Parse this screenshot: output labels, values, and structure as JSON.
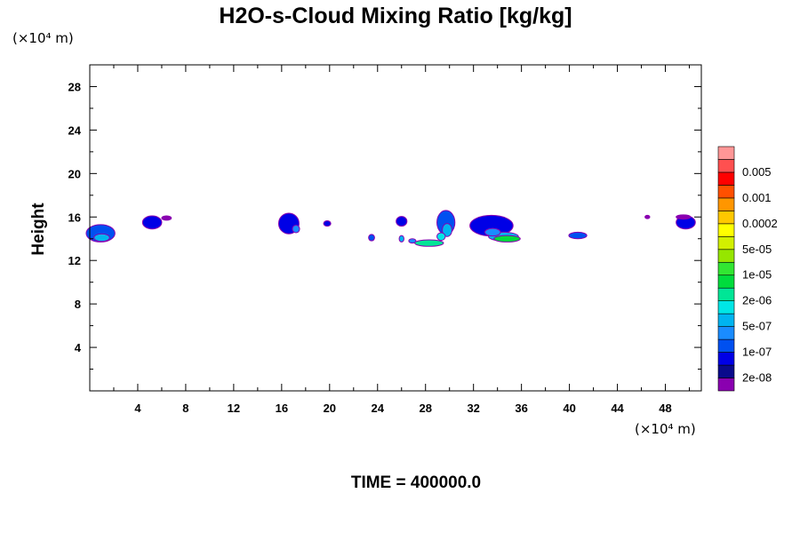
{
  "chart_data": {
    "type": "heatmap",
    "title": "H2O-s-Cloud Mixing Ratio [kg/kg]",
    "xlabel": "",
    "ylabel": "Height",
    "x_unit": "(×10⁴ m)",
    "y_unit": "(×10⁴ m)",
    "xlim": [
      0,
      51
    ],
    "ylim": [
      0,
      30
    ],
    "x_ticks": [
      4,
      8,
      12,
      16,
      20,
      24,
      28,
      32,
      36,
      40,
      44,
      48
    ],
    "x_tick_labels": [
      "4",
      "8",
      "12",
      "16",
      "20",
      "24",
      "28",
      "32",
      "36",
      "40",
      "44",
      "48"
    ],
    "y_ticks": [
      4,
      8,
      12,
      16,
      20,
      24,
      28
    ],
    "y_tick_labels": [
      "4",
      "8",
      "12",
      "16",
      "20",
      "24",
      "28"
    ],
    "colorbar": {
      "colors": [
        "#8a00b0",
        "#0a0a8c",
        "#0000e6",
        "#0050f0",
        "#1a8cff",
        "#00b4f0",
        "#00e6e6",
        "#00e696",
        "#00dc3c",
        "#32e632",
        "#96e600",
        "#d2f000",
        "#ffff00",
        "#ffc800",
        "#ff9600",
        "#ff5000",
        "#ff0000",
        "#ff5050",
        "#ff9696"
      ],
      "labels": [
        "2e-08",
        "1e-07",
        "5e-07",
        "2e-06",
        "1e-05",
        "5e-05",
        "0.0002",
        "0.001",
        "0.005"
      ]
    },
    "clouds": [
      {
        "x": 0.9,
        "y": 14.5,
        "w": 2.4,
        "h": 1.6,
        "level": 3
      },
      {
        "x": 1.0,
        "y": 14.1,
        "w": 1.3,
        "h": 0.7,
        "level": 5
      },
      {
        "x": 5.2,
        "y": 15.5,
        "w": 1.6,
        "h": 1.2,
        "level": 2
      },
      {
        "x": 6.4,
        "y": 15.9,
        "w": 0.8,
        "h": 0.4,
        "level": 0
      },
      {
        "x": 16.6,
        "y": 15.4,
        "w": 1.7,
        "h": 1.9,
        "level": 2
      },
      {
        "x": 17.2,
        "y": 14.9,
        "w": 0.6,
        "h": 0.7,
        "level": 4
      },
      {
        "x": 19.8,
        "y": 15.4,
        "w": 0.6,
        "h": 0.5,
        "level": 2
      },
      {
        "x": 23.5,
        "y": 14.1,
        "w": 0.5,
        "h": 0.6,
        "level": 3
      },
      {
        "x": 26.0,
        "y": 15.6,
        "w": 0.9,
        "h": 0.9,
        "level": 2
      },
      {
        "x": 26.0,
        "y": 14.0,
        "w": 0.4,
        "h": 0.6,
        "level": 5
      },
      {
        "x": 26.9,
        "y": 13.8,
        "w": 0.6,
        "h": 0.4,
        "level": 4
      },
      {
        "x": 28.3,
        "y": 13.6,
        "w": 2.4,
        "h": 0.6,
        "level": 7
      },
      {
        "x": 29.7,
        "y": 15.5,
        "w": 1.5,
        "h": 2.2,
        "level": 3
      },
      {
        "x": 29.8,
        "y": 14.8,
        "w": 0.8,
        "h": 1.2,
        "level": 5
      },
      {
        "x": 29.3,
        "y": 14.2,
        "w": 0.7,
        "h": 0.7,
        "level": 6
      },
      {
        "x": 33.5,
        "y": 15.2,
        "w": 3.6,
        "h": 1.9,
        "level": 2
      },
      {
        "x": 34.5,
        "y": 14.2,
        "w": 2.5,
        "h": 0.8,
        "level": 5
      },
      {
        "x": 34.8,
        "y": 14.0,
        "w": 2.2,
        "h": 0.6,
        "level": 8
      },
      {
        "x": 33.6,
        "y": 14.6,
        "w": 1.3,
        "h": 0.7,
        "level": 4
      },
      {
        "x": 40.7,
        "y": 14.3,
        "w": 1.5,
        "h": 0.6,
        "level": 3
      },
      {
        "x": 46.5,
        "y": 16.0,
        "w": 0.4,
        "h": 0.3,
        "level": 0
      },
      {
        "x": 49.7,
        "y": 15.5,
        "w": 1.6,
        "h": 1.2,
        "level": 2
      },
      {
        "x": 49.5,
        "y": 16.0,
        "w": 1.2,
        "h": 0.4,
        "level": 0
      }
    ]
  },
  "footer": {
    "time_label": "TIME = 400000.0"
  }
}
